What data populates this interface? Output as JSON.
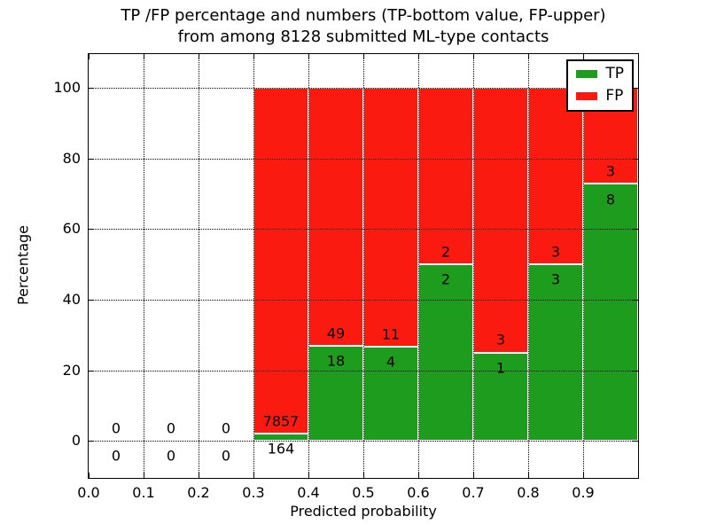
{
  "figure": {
    "title_line1": "TP /FP percentage and numbers (TP-bottom value, FP-upper)",
    "title_line2": "from among 8128 submitted ML-type contacts",
    "xlabel": "Predicted probability",
    "ylabel": "Percentage"
  },
  "colors": {
    "tp_green": "#1e9c1e",
    "fp_red": "#fb1a10",
    "bar_edge": "#ffffff",
    "grid": "#000000",
    "frame": "#000000",
    "background": "#ffffff",
    "text": "#000000"
  },
  "legend": {
    "position": "upper right",
    "items": [
      {
        "label": "TP",
        "color": "#1e9c1e"
      },
      {
        "label": "FP",
        "color": "#fb1a10"
      }
    ]
  },
  "chart_data": {
    "type": "bar",
    "stacked": true,
    "orientation": "vertical",
    "title": "TP /FP percentage and numbers (TP-bottom value, FP-upper) from among 8128 submitted ML-type contacts",
    "xlabel": "Predicted probability",
    "ylabel": "Percentage",
    "total_contacts": 8128,
    "grid": "dotted",
    "xlim": [
      0.0,
      1.0
    ],
    "ylim": [
      -10.5,
      109.5
    ],
    "xticks": [
      "0.0",
      "0.1",
      "0.2",
      "0.3",
      "0.4",
      "0.5",
      "0.6",
      "0.7",
      "0.8",
      "0.9"
    ],
    "yticks": [
      "0",
      "20",
      "40",
      "60",
      "80",
      "100"
    ],
    "series": [
      {
        "name": "TP",
        "color": "#1e9c1e",
        "counts": [
          0,
          0,
          0,
          164,
          18,
          4,
          2,
          1,
          3,
          8
        ]
      },
      {
        "name": "FP",
        "color": "#fb1a10",
        "counts": [
          0,
          0,
          0,
          7857,
          49,
          11,
          2,
          3,
          3,
          3
        ]
      }
    ],
    "bins": [
      {
        "range": [
          0.0,
          0.1
        ],
        "tp_count": 0,
        "fp_count": 0,
        "tp_pct": 0,
        "fp_pct": 0,
        "tp_label": "0",
        "fp_label": "0"
      },
      {
        "range": [
          0.1,
          0.2
        ],
        "tp_count": 0,
        "fp_count": 0,
        "tp_pct": 0,
        "fp_pct": 0,
        "tp_label": "0",
        "fp_label": "0"
      },
      {
        "range": [
          0.2,
          0.3
        ],
        "tp_count": 0,
        "fp_count": 0,
        "tp_pct": 0,
        "fp_pct": 0,
        "tp_label": "0",
        "fp_label": "0"
      },
      {
        "range": [
          0.3,
          0.4
        ],
        "tp_count": 164,
        "fp_count": 7857,
        "tp_pct": 2.04,
        "fp_pct": 97.96,
        "tp_label": "164",
        "fp_label": "7857"
      },
      {
        "range": [
          0.4,
          0.5
        ],
        "tp_count": 18,
        "fp_count": 49,
        "tp_pct": 26.87,
        "fp_pct": 73.13,
        "tp_label": "18",
        "fp_label": "49"
      },
      {
        "range": [
          0.5,
          0.6
        ],
        "tp_count": 4,
        "fp_count": 11,
        "tp_pct": 26.67,
        "fp_pct": 73.33,
        "tp_label": "4",
        "fp_label": "11"
      },
      {
        "range": [
          0.6,
          0.7
        ],
        "tp_count": 2,
        "fp_count": 2,
        "tp_pct": 50,
        "fp_pct": 50,
        "tp_label": "2",
        "fp_label": "2"
      },
      {
        "range": [
          0.7,
          0.8
        ],
        "tp_count": 1,
        "fp_count": 3,
        "tp_pct": 25,
        "fp_pct": 75,
        "tp_label": "1",
        "fp_label": "3"
      },
      {
        "range": [
          0.8,
          0.9
        ],
        "tp_count": 3,
        "fp_count": 3,
        "tp_pct": 50,
        "fp_pct": 50,
        "tp_label": "3",
        "fp_label": "3"
      },
      {
        "range": [
          0.9,
          1.0
        ],
        "tp_count": 8,
        "fp_count": 3,
        "tp_pct": 72.73,
        "fp_pct": 27.27,
        "tp_label": "8",
        "fp_label": "3"
      }
    ]
  }
}
